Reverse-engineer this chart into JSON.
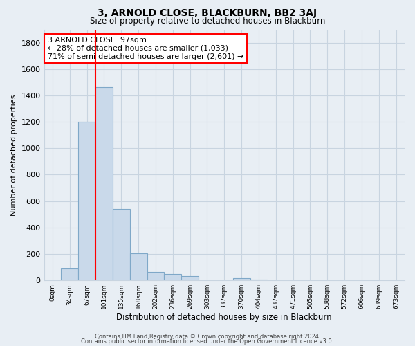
{
  "title": "3, ARNOLD CLOSE, BLACKBURN, BB2 3AJ",
  "subtitle": "Size of property relative to detached houses in Blackburn",
  "xlabel": "Distribution of detached houses by size in Blackburn",
  "ylabel": "Number of detached properties",
  "bar_labels": [
    "0sqm",
    "34sqm",
    "67sqm",
    "101sqm",
    "135sqm",
    "168sqm",
    "202sqm",
    "236sqm",
    "269sqm",
    "303sqm",
    "337sqm",
    "370sqm",
    "404sqm",
    "437sqm",
    "471sqm",
    "505sqm",
    "538sqm",
    "572sqm",
    "606sqm",
    "639sqm",
    "673sqm"
  ],
  "bar_values": [
    0,
    90,
    1200,
    1460,
    540,
    205,
    65,
    48,
    30,
    0,
    0,
    15,
    5,
    0,
    0,
    0,
    0,
    0,
    0,
    0,
    0
  ],
  "bar_color": "#c9d9ea",
  "bar_edgecolor": "#7fa8c8",
  "ylim": [
    0,
    1900
  ],
  "yticks": [
    0,
    200,
    400,
    600,
    800,
    1000,
    1200,
    1400,
    1600,
    1800
  ],
  "annotation_title": "3 ARNOLD CLOSE: 97sqm",
  "annotation_line1": "← 28% of detached houses are smaller (1,033)",
  "annotation_line2": "71% of semi-detached houses are larger (2,601) →",
  "footer_line1": "Contains HM Land Registry data © Crown copyright and database right 2024.",
  "footer_line2": "Contains public sector information licensed under the Open Government Licence v3.0.",
  "bg_color": "#e8eef4",
  "plot_bg_color": "#e8eef4",
  "grid_color": "#c8d4e0",
  "red_line_index": 3
}
